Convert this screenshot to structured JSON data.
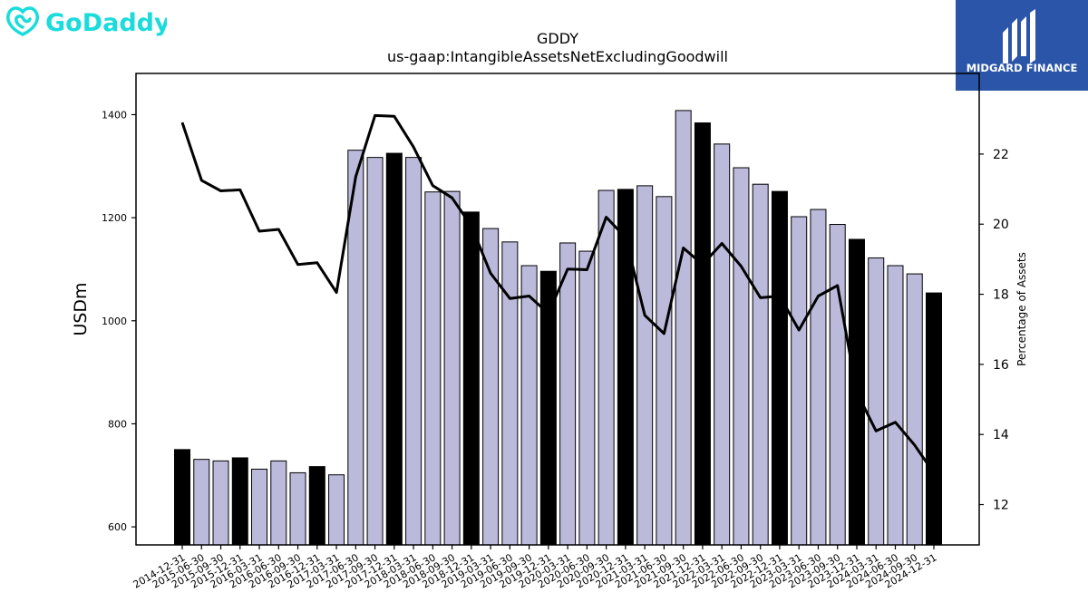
{
  "branding": {
    "left_logo_text": "GoDaddy",
    "right_logo_text": "MIDGARD FINANCE",
    "left_logo_color": "#1bdbdb",
    "right_logo_bg": "#2a55a8"
  },
  "chart_data": {
    "type": "bar",
    "title": "GDDY",
    "subtitle": "us-gaap:IntangibleAssetsNetExcludingGoodwill",
    "ylabel": "USDm",
    "y2label": "Percentage of Assets",
    "ylim": [
      565,
      1480
    ],
    "y2lim": [
      10.85,
      24.3
    ],
    "yticks": [
      600,
      800,
      1000,
      1200,
      1400
    ],
    "y2ticks": [
      12,
      14,
      16,
      18,
      20,
      22
    ],
    "grid": false,
    "bar_colors": {
      "year_end": "#000000",
      "quarter": "#bcbadb"
    },
    "categories": [
      "2014-12-31",
      "2015-06-30",
      "2015-09-30",
      "2015-12-31",
      "2016-03-31",
      "2016-06-30",
      "2016-09-30",
      "2016-12-31",
      "2017-03-31",
      "2017-06-30",
      "2017-09-30",
      "2017-12-31",
      "2018-03-31",
      "2018-06-30",
      "2018-09-30",
      "2018-12-31",
      "2019-03-31",
      "2019-06-30",
      "2019-09-30",
      "2019-12-31",
      "2020-03-31",
      "2020-06-30",
      "2020-09-30",
      "2020-12-31",
      "2021-03-31",
      "2021-06-30",
      "2021-09-30",
      "2021-12-31",
      "2022-03-31",
      "2022-06-30",
      "2022-09-30",
      "2022-12-31",
      "2023-03-31",
      "2023-06-30",
      "2023-09-30",
      "2023-12-31",
      "2024-03-31",
      "2024-06-30",
      "2024-09-30",
      "2024-12-31"
    ],
    "series": [
      {
        "values": [
          750,
          731,
          728,
          734,
          712,
          728,
          705,
          717,
          701,
          1331,
          1317,
          1325,
          1317,
          1250,
          1251,
          1211,
          1179,
          1153,
          1107,
          1096,
          1151,
          1135,
          1253,
          1255,
          1262,
          1241,
          1408,
          1384,
          1343,
          1297,
          1265,
          1251,
          1202,
          1216,
          1187,
          1158,
          1122,
          1107,
          1091,
          1054
        ],
        "year_end": [
          true,
          false,
          false,
          true,
          false,
          false,
          false,
          true,
          false,
          false,
          false,
          true,
          false,
          false,
          false,
          true,
          false,
          false,
          false,
          true,
          false,
          false,
          false,
          true,
          false,
          false,
          false,
          true,
          false,
          false,
          false,
          true,
          false,
          false,
          false,
          true,
          false,
          false,
          false,
          true
        ]
      },
      {
        "axis": "right",
        "values": [
          22.9,
          21.25,
          20.95,
          20.98,
          19.8,
          19.85,
          18.85,
          18.9,
          18.05,
          21.35,
          23.1,
          23.08,
          22.2,
          21.1,
          20.75,
          19.95,
          18.6,
          17.88,
          17.95,
          17.45,
          18.72,
          18.7,
          20.2,
          19.62,
          17.4,
          16.88,
          19.32,
          18.85,
          19.45,
          18.8,
          17.9,
          17.95,
          16.98,
          17.95,
          18.25,
          15.2,
          14.1,
          14.35,
          13.7,
          12.9
        ]
      }
    ]
  }
}
